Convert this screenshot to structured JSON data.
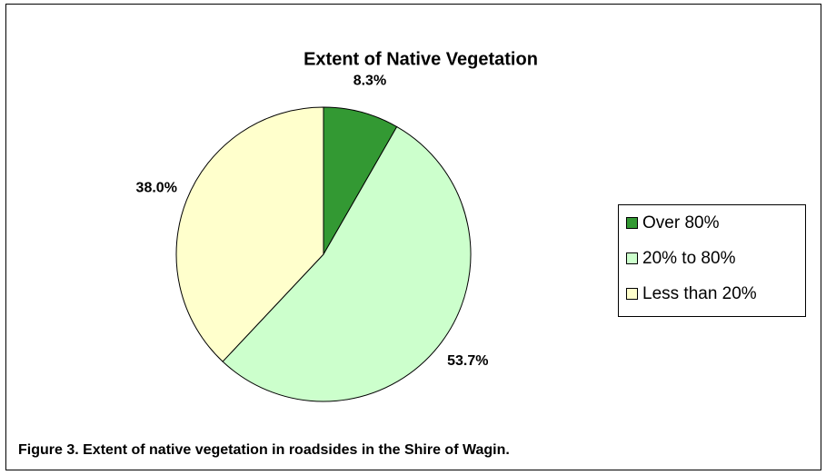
{
  "chart_data": {
    "type": "pie",
    "title": "Extent of Native Vegetation",
    "categories": [
      "Over 80%",
      "20% to 80%",
      "Less than 20%"
    ],
    "values": [
      8.3,
      53.7,
      38.0
    ],
    "value_labels": [
      "8.3%",
      "53.7%",
      "38.0%"
    ],
    "colors": [
      "#339933",
      "#ccffcc",
      "#ffffcc"
    ],
    "legend": "right",
    "caption": "Figure 3. Extent of native vegetation in roadsides in the Shire of Wagin."
  }
}
